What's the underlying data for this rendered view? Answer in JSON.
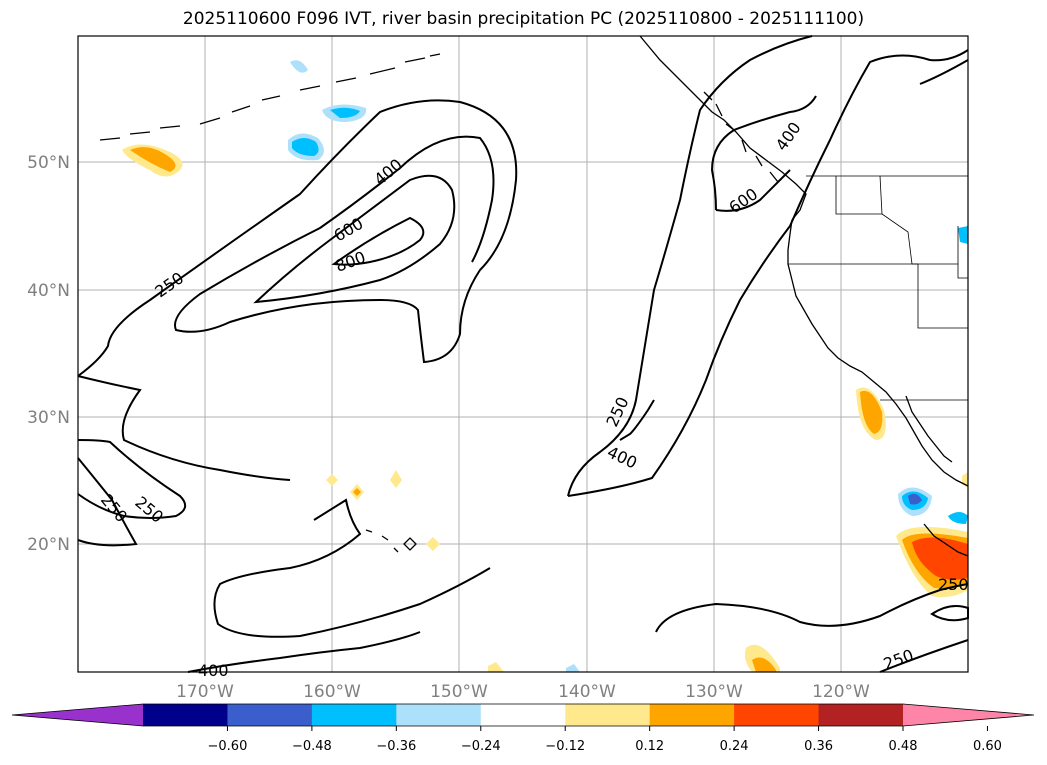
{
  "title": "2025110600 F096 IVT, river basin precipitation PC (2025110800 - 2025111100)",
  "lat_labels": [
    "50°N",
    "40°N",
    "30°N",
    "20°N"
  ],
  "lon_labels": [
    "170°W",
    "160°W",
    "150°W",
    "140°W",
    "130°W",
    "120°W"
  ],
  "contour_labels": [
    "400",
    "600",
    "800",
    "250",
    "400",
    "600",
    "250",
    "400",
    "250",
    "250",
    "250",
    "250",
    "400"
  ],
  "colorbar": {
    "ticks": [
      "−0.60",
      "−0.48",
      "−0.36",
      "−0.24",
      "−0.12",
      "0.12",
      "0.24",
      "0.36",
      "0.48",
      "0.60"
    ],
    "colors": [
      "#9932cc",
      "#00008b",
      "#3a5fcd",
      "#00bfff",
      "#ade0fa",
      "#ffffff",
      "#ffe98c",
      "#ffa500",
      "#ff4500",
      "#b22222",
      "#ff85a8"
    ]
  },
  "fills": {
    "orange": "#ffa500",
    "yellow": "#ffe98c",
    "red": "#ff4500",
    "cyan": "#00bfff",
    "lightblue": "#ade0fa",
    "blue": "#3a5fcd"
  }
}
